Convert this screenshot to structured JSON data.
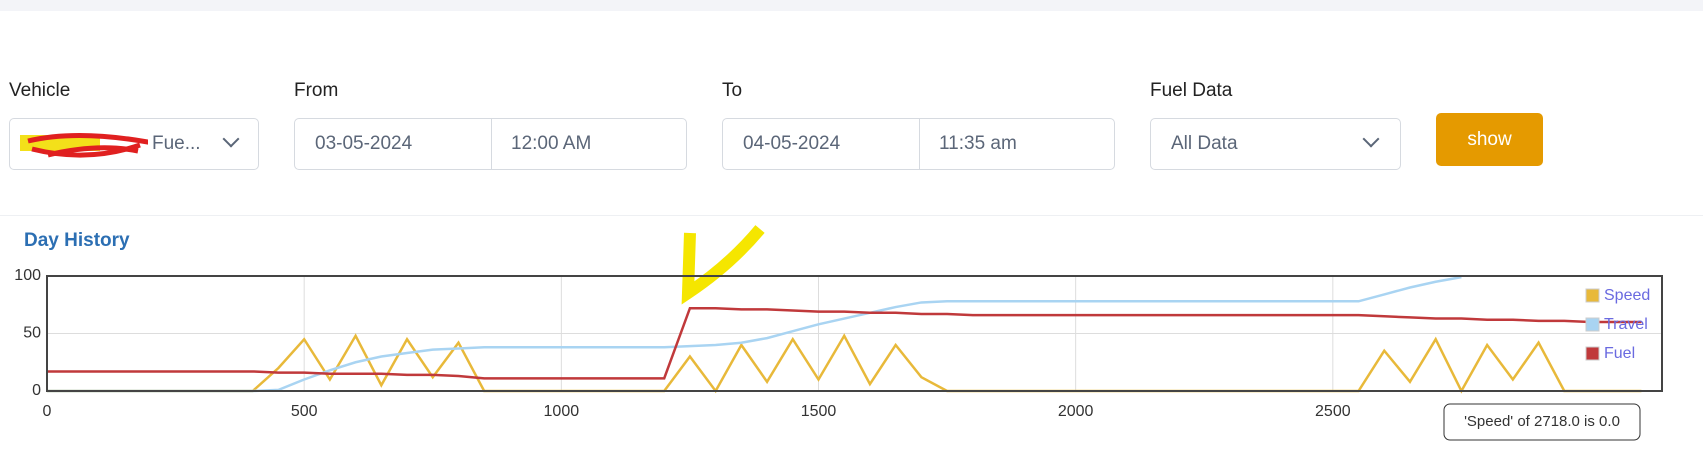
{
  "form": {
    "vehicle_label": "Vehicle",
    "vehicle_value": "Fue...",
    "from_label": "From",
    "from_date": "03-05-2024",
    "from_time": "12:00 AM",
    "to_label": "To",
    "to_date": "04-05-2024",
    "to_time": "11:35 am",
    "fuel_label": "Fuel Data",
    "fuel_value": "All Data",
    "button": "show"
  },
  "panel_title": "Day History",
  "tooltip": "'Speed' of 2718.0 is 0.0",
  "chart_data": {
    "type": "line",
    "x": [
      0,
      50,
      100,
      150,
      200,
      250,
      300,
      350,
      400,
      450,
      500,
      550,
      600,
      650,
      700,
      750,
      800,
      850,
      900,
      950,
      1000,
      1050,
      1100,
      1150,
      1200,
      1250,
      1300,
      1350,
      1400,
      1450,
      1500,
      1550,
      1600,
      1650,
      1700,
      1750,
      1800,
      1850,
      1900,
      1950,
      2000,
      2050,
      2100,
      2150,
      2200,
      2250,
      2300,
      2350,
      2400,
      2450,
      2500,
      2550,
      2600,
      2650,
      2700,
      2750,
      2800,
      2850,
      2900,
      2950,
      3000,
      3050,
      3100
    ],
    "series": [
      {
        "name": "Speed",
        "color": "#e8b93a",
        "values": [
          0,
          0,
          0,
          0,
          0,
          0,
          0,
          0,
          0,
          20,
          45,
          10,
          48,
          5,
          45,
          12,
          42,
          0,
          0,
          0,
          0,
          0,
          0,
          0,
          0,
          30,
          0,
          40,
          8,
          45,
          10,
          48,
          6,
          40,
          12,
          0,
          0,
          0,
          0,
          0,
          0,
          0,
          0,
          0,
          0,
          0,
          0,
          0,
          0,
          0,
          0,
          0,
          35,
          8,
          45,
          0,
          40,
          10,
          42,
          0,
          0,
          0,
          0
        ]
      },
      {
        "name": "Travel",
        "color": "#a9d4f2",
        "values": [
          0,
          0,
          0,
          0,
          0,
          0,
          0,
          0,
          0,
          1,
          10,
          18,
          25,
          30,
          33,
          36,
          37,
          38,
          38,
          38,
          38,
          38,
          38,
          38,
          38,
          39,
          40,
          42,
          46,
          52,
          58,
          63,
          68,
          73,
          77,
          78,
          78,
          78,
          78,
          78,
          78,
          78,
          78,
          78,
          78,
          78,
          78,
          78,
          78,
          78,
          78,
          78,
          84,
          90,
          95,
          99,
          null,
          null,
          null,
          null,
          null,
          null,
          null
        ]
      },
      {
        "name": "Fuel",
        "color": "#c0393b",
        "values": [
          17,
          17,
          17,
          17,
          17,
          17,
          17,
          17,
          17,
          16,
          16,
          15,
          15,
          15,
          14,
          14,
          13,
          11,
          11,
          11,
          11,
          11,
          11,
          11,
          11,
          72,
          72,
          71,
          71,
          70,
          69,
          69,
          68,
          68,
          67,
          67,
          66,
          66,
          66,
          66,
          66,
          66,
          66,
          66,
          66,
          66,
          66,
          66,
          66,
          66,
          66,
          66,
          65,
          64,
          63,
          63,
          62,
          62,
          61,
          61,
          60,
          60,
          60
        ]
      }
    ],
    "xlim": [
      0,
      3140
    ],
    "ylim": [
      0,
      100
    ],
    "xticks": [
      0,
      500,
      1000,
      1500,
      2000,
      2500
    ],
    "yticks": [
      0,
      50,
      100
    ],
    "grid": true,
    "legend": "top-right"
  }
}
